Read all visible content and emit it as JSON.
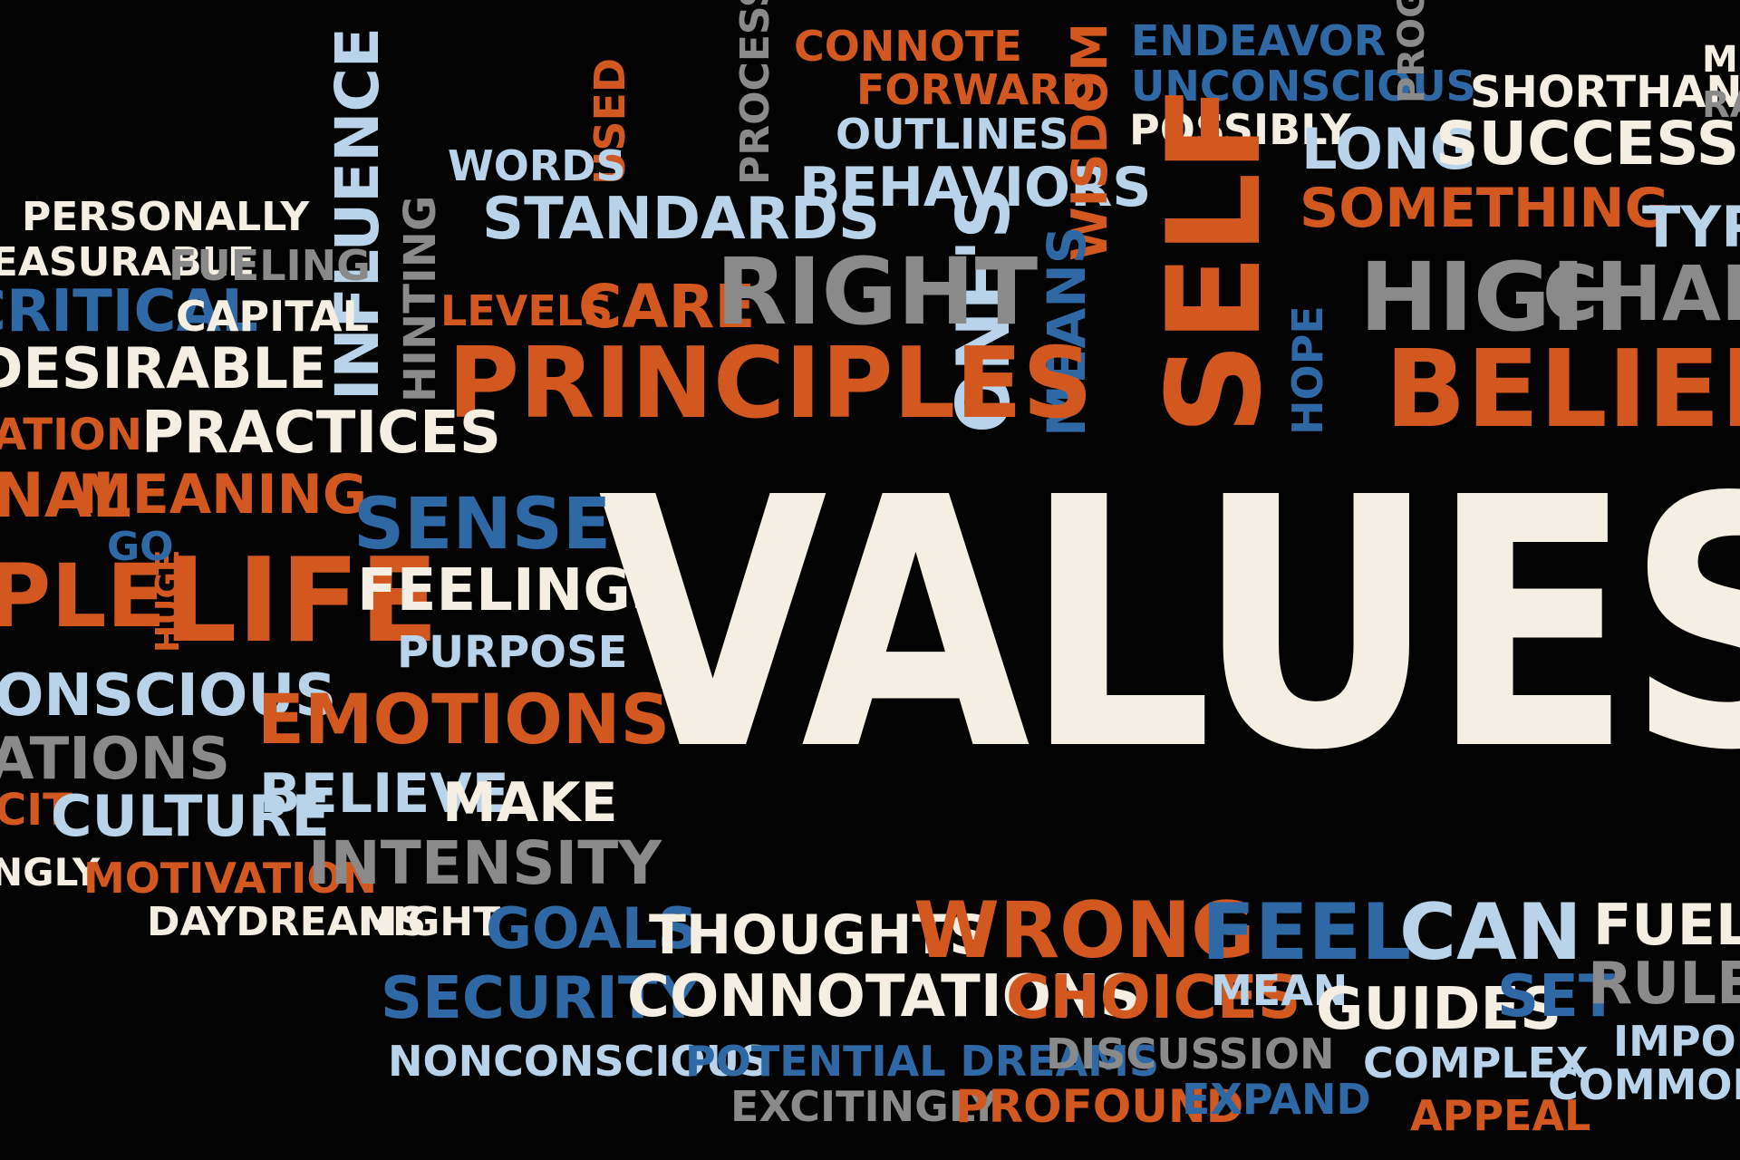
{
  "colors": {
    "background": "#030303",
    "orange": "#D2581F",
    "white": "#F4EEE3",
    "blue": "#2E69A6",
    "light_blue": "#B9D4EA",
    "gray": "#8A8A8A"
  },
  "words": {
    "values": "VALUES",
    "principles": "PRINCIPLES",
    "beliefs": "BELIEFS",
    "self": "SELF",
    "right": "RIGHT",
    "high": "HIGH",
    "change": "CHANGE",
    "ones": "ONE'S",
    "life": "LIFE",
    "emotions": "EMOTIONS",
    "wrong": "WRONG",
    "feel": "FEEL",
    "can": "CAN",
    "thoughts": "THOUGHTS",
    "connotations": "CONNOTATIONS",
    "choices": "CHOICES",
    "security": "SECURITY",
    "goals": "GOALS",
    "guides": "GUIDES",
    "set": "SET",
    "mean": "MEAN",
    "fueled": "FUELED",
    "rules": "RULES",
    "complex": "COMPLEX",
    "important": "IMPORTANT",
    "commonly": "COMMONLY",
    "appeal": "APPEAL",
    "expand": "EXPAND",
    "profound": "PROFOUND",
    "excitingly": "EXCITINGLY",
    "discussion": "DISCUSSION",
    "potential_dreams": "POTENTIAL DREAMS",
    "nonconscious": "NONCONSCIOUS",
    "intensity": "INTENSITY",
    "motivation": "MOTIVATION",
    "daydreams": "DAYDREAMS",
    "night": "NIGHT",
    "culture": "CULTURE",
    "believe": "BELIEVE",
    "make": "MAKE",
    "purpose": "PURPOSE",
    "feelings": "FEELINGS",
    "sense": "SENSE",
    "go": "GO",
    "huge": "HUGE",
    "meaning": "MEANING",
    "practices": "PRACTICES",
    "desirable": "DESIRABLE",
    "critical": "CRITICAL",
    "capital": "CAPITAL",
    "fueling": "FUELING",
    "measurable": "MEASURABLE",
    "personally": "PERSONALLY",
    "influence": "INFLUENCE",
    "hinting": "HINTING",
    "levels": "LEVELS",
    "care": "CARE",
    "words": "WORDS",
    "used": "USED",
    "standards": "STANDARDS",
    "processes": "PROCESSES",
    "connote": "CONNOTE",
    "forward": "FORWARD",
    "outlines": "OUTLINES",
    "behaviors": "BEHAVIORS",
    "wisdom": "WISDOM",
    "means": "MEANS",
    "hope": "HOPE",
    "endeavor": "ENDEAVOR",
    "unconscious": "UNCONSCIOUS",
    "possibly": "POSSIBLY",
    "long": "LONG",
    "success": "SUCCESS",
    "something": "SOMETHING",
    "progress": "PROGRESS",
    "shorthand": "SHORTHAND",
    "typical": "TYPICAL",
    "ration": "ATION",
    "nal": "NAL",
    "ple": "PLE",
    "onscious": "ONSCIOUS",
    "ations": "ATIONS",
    "cit": "CIT",
    "ngly": "NGLY",
    "mi": "MI",
    "ra": "RA"
  }
}
